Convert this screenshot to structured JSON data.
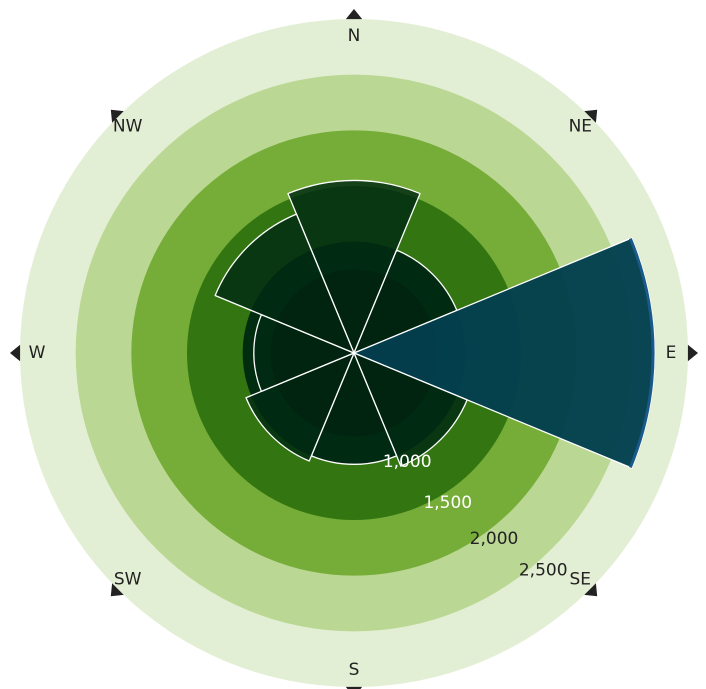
{
  "chart_data": {
    "type": "radial-bar",
    "title": "",
    "directions": [
      "N",
      "NE",
      "E",
      "SE",
      "S",
      "SW",
      "W",
      "NW"
    ],
    "values": [
      1550,
      1000,
      2700,
      1100,
      1000,
      1050,
      900,
      1350
    ],
    "radial_axis": {
      "min": 0,
      "max": 3000,
      "tick_values": [
        1000,
        1500,
        2000,
        2500
      ],
      "tick_labels": [
        "1,000",
        "1,500",
        "2,000",
        "2,500"
      ]
    },
    "direction_labels": {
      "N": "N",
      "NE": "NE",
      "E": "E",
      "SE": "SE",
      "S": "S",
      "SW": "SW",
      "W": "W",
      "NW": "NW"
    },
    "highlight": {
      "direction": "E",
      "color": "#033f4e",
      "edge_color": "#1a5a8a"
    },
    "colors": {
      "band_colors": [
        "#e3efd4",
        "#bbd794",
        "#76ac38",
        "#337611",
        "#002d10",
        "#000f04"
      ],
      "bar_fill": "#002a12",
      "bar_stroke": "#ffffff",
      "ring_label_light": "#ffffff",
      "ring_label_dark": "#222222",
      "marker": "#222222"
    }
  }
}
